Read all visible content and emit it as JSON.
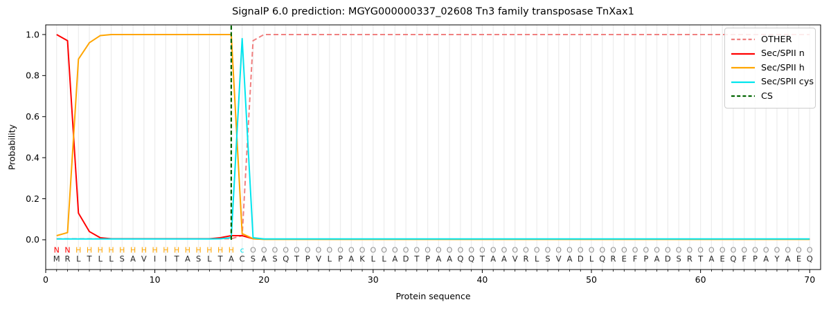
{
  "chart_data": {
    "type": "line",
    "title": "SignalP 6.0 prediction: MGYG000000337_02608 Tn3 family transposase TnXax1",
    "xlabel": "Protein sequence",
    "ylabel": "Probability",
    "xlim": [
      0,
      71
    ],
    "ylim": [
      -0.145,
      1.047
    ],
    "xticks": [
      0,
      10,
      20,
      30,
      40,
      50,
      60,
      70
    ],
    "yticks": [
      0.0,
      0.2,
      0.4,
      0.6,
      0.8,
      1.0
    ],
    "grid": "vertical line per residue, light gray",
    "legend_position": "upper right",
    "x_start": 1,
    "series": [
      {
        "name": "OTHER",
        "color": "#f08080",
        "style": "dashed",
        "values": [
          0.005,
          0.005,
          0.005,
          0.005,
          0.005,
          0.005,
          0.005,
          0.005,
          0.005,
          0.005,
          0.005,
          0.005,
          0.005,
          0.005,
          0.005,
          0.005,
          0.005,
          0.02,
          0.97,
          1.0,
          1.0,
          1.0,
          1.0,
          1.0,
          1.0,
          1.0,
          1.0,
          1.0,
          1.0,
          1.0,
          1.0,
          1.0,
          1.0,
          1.0,
          1.0,
          1.0,
          1.0,
          1.0,
          1.0,
          1.0,
          1.0,
          1.0,
          1.0,
          1.0,
          1.0,
          1.0,
          1.0,
          1.0,
          1.0,
          1.0,
          1.0,
          1.0,
          1.0,
          1.0,
          1.0,
          1.0,
          1.0,
          1.0,
          1.0,
          1.0,
          1.0,
          1.0,
          1.0,
          1.0,
          1.0,
          1.0,
          1.0,
          1.0,
          1.0,
          1.0
        ]
      },
      {
        "name": "Sec/SPII n",
        "color": "#ff0000",
        "style": "solid",
        "values": [
          1.0,
          0.97,
          0.13,
          0.04,
          0.01,
          0.005,
          0.005,
          0.005,
          0.005,
          0.005,
          0.005,
          0.005,
          0.005,
          0.005,
          0.005,
          0.01,
          0.02,
          0.02,
          0.005,
          0.003,
          0.003,
          0.003,
          0.003,
          0.003,
          0.003,
          0.003,
          0.003,
          0.003,
          0.003,
          0.003,
          0.003,
          0.003,
          0.003,
          0.003,
          0.003,
          0.003,
          0.003,
          0.003,
          0.003,
          0.003,
          0.003,
          0.003,
          0.003,
          0.003,
          0.003,
          0.003,
          0.003,
          0.003,
          0.003,
          0.003,
          0.003,
          0.003,
          0.003,
          0.003,
          0.003,
          0.003,
          0.003,
          0.003,
          0.003,
          0.003,
          0.003,
          0.003,
          0.003,
          0.003,
          0.003,
          0.003,
          0.003,
          0.003,
          0.003,
          0.003
        ]
      },
      {
        "name": "Sec/SPII h",
        "color": "#ffa500",
        "style": "solid",
        "values": [
          0.02,
          0.035,
          0.88,
          0.96,
          0.995,
          1.0,
          1.0,
          1.0,
          1.0,
          1.0,
          1.0,
          1.0,
          1.0,
          1.0,
          1.0,
          1.0,
          1.0,
          0.03,
          0.005,
          0.002,
          0.002,
          0.002,
          0.002,
          0.002,
          0.002,
          0.002,
          0.002,
          0.002,
          0.002,
          0.002,
          0.002,
          0.002,
          0.002,
          0.002,
          0.002,
          0.002,
          0.002,
          0.002,
          0.002,
          0.002,
          0.002,
          0.002,
          0.002,
          0.002,
          0.002,
          0.002,
          0.002,
          0.002,
          0.002,
          0.002,
          0.002,
          0.002,
          0.002,
          0.002,
          0.002,
          0.002,
          0.002,
          0.002,
          0.002,
          0.002,
          0.002,
          0.002,
          0.002,
          0.002,
          0.002,
          0.002,
          0.002,
          0.002,
          0.002,
          0.002
        ]
      },
      {
        "name": "Sec/SPII cys",
        "color": "#00e5ee",
        "style": "solid",
        "values": [
          0.004,
          0.004,
          0.004,
          0.004,
          0.004,
          0.004,
          0.004,
          0.004,
          0.004,
          0.004,
          0.004,
          0.004,
          0.004,
          0.004,
          0.004,
          0.005,
          0.01,
          0.98,
          0.01,
          0.004,
          0.004,
          0.004,
          0.004,
          0.004,
          0.004,
          0.004,
          0.004,
          0.004,
          0.004,
          0.004,
          0.004,
          0.004,
          0.004,
          0.004,
          0.004,
          0.004,
          0.004,
          0.004,
          0.004,
          0.004,
          0.004,
          0.004,
          0.004,
          0.004,
          0.004,
          0.004,
          0.004,
          0.004,
          0.004,
          0.004,
          0.004,
          0.004,
          0.004,
          0.004,
          0.004,
          0.004,
          0.004,
          0.004,
          0.004,
          0.004,
          0.004,
          0.004,
          0.004,
          0.004,
          0.004,
          0.004,
          0.004,
          0.004,
          0.004,
          0.004
        ]
      }
    ],
    "cs_marker": {
      "name": "CS",
      "color": "#006400",
      "style": "dashed",
      "position": 17
    },
    "annotations": {
      "region_row": [
        {
          "letter": "N",
          "color": "#ff0000",
          "start": 1,
          "end": 2
        },
        {
          "letter": "H",
          "color": "#ffa500",
          "start": 3,
          "end": 17
        },
        {
          "letter": "c",
          "color": "#00e5ee",
          "start": 18,
          "end": 18
        },
        {
          "letter": "O",
          "color": "#8d8d8d",
          "start": 19,
          "end": 70
        }
      ],
      "sequence": "MRLTLLSAVIITASLTACSASQTPVLPAKLLADTPAAQQTAAVRLSVADLQREFPADSRTAEQFPAYAEQ",
      "sequence_color": "#2b2b2b"
    }
  }
}
